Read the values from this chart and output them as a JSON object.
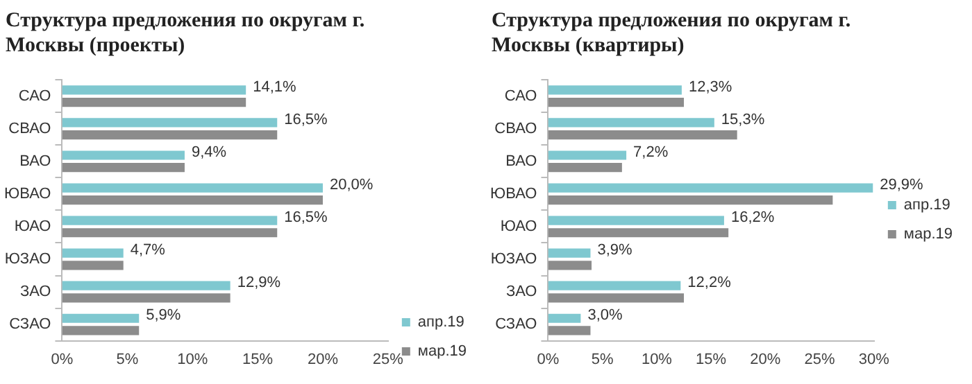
{
  "chart_data": [
    {
      "type": "bar",
      "orientation": "horizontal",
      "title": "Структура предложения по округам г. Москвы (проекты)",
      "categories": [
        "САО",
        "СВАО",
        "ВАО",
        "ЮВАО",
        "ЮАО",
        "ЮЗАО",
        "ЗАО",
        "СЗАО"
      ],
      "series": [
        {
          "name": "апр.19",
          "color": "#7fc8d0",
          "values": [
            14.1,
            16.5,
            9.4,
            20.0,
            16.5,
            4.7,
            12.9,
            5.9
          ],
          "value_labels": [
            "14,1%",
            "16,5%",
            "9,4%",
            "20,0%",
            "16,5%",
            "4,7%",
            "12,9%",
            "5,9%"
          ]
        },
        {
          "name": "мар.19",
          "color": "#8c8c8c",
          "values": [
            14.1,
            16.5,
            9.4,
            20.0,
            16.5,
            4.7,
            12.9,
            5.9
          ]
        }
      ],
      "xlim": [
        0,
        25
      ],
      "xticks": [
        {
          "value": 0,
          "label": "0%"
        },
        {
          "value": 5,
          "label": "5%"
        },
        {
          "value": 10,
          "label": "10%"
        },
        {
          "value": 15,
          "label": "15%"
        },
        {
          "value": 20,
          "label": "20%"
        },
        {
          "value": 25,
          "label": "25%"
        }
      ],
      "grid": false,
      "legend": "bottom right"
    },
    {
      "type": "bar",
      "orientation": "horizontal",
      "title": "Структура предложения по округам г. Москвы (квартиры)",
      "categories": [
        "САО",
        "СВАО",
        "ВАО",
        "ЮВАО",
        "ЮАО",
        "ЮЗАО",
        "ЗАО",
        "СЗАО"
      ],
      "series": [
        {
          "name": "апр.19",
          "color": "#7fc8d0",
          "values": [
            12.3,
            15.3,
            7.2,
            29.9,
            16.2,
            3.9,
            12.2,
            3.0
          ],
          "value_labels": [
            "12,3%",
            "15,3%",
            "7,2%",
            "29,9%",
            "16,2%",
            "3,9%",
            "12,2%",
            "3,0%"
          ]
        },
        {
          "name": "мар.19",
          "color": "#8c8c8c",
          "values": [
            12.5,
            17.4,
            6.8,
            26.2,
            16.6,
            4.0,
            12.5,
            3.9
          ]
        }
      ],
      "xlim": [
        0,
        30
      ],
      "xticks": [
        {
          "value": 0,
          "label": "0%"
        },
        {
          "value": 5,
          "label": "5%"
        },
        {
          "value": 10,
          "label": "10%"
        },
        {
          "value": 15,
          "label": "15%"
        },
        {
          "value": 20,
          "label": "20%"
        },
        {
          "value": 25,
          "label": "25%"
        },
        {
          "value": 30,
          "label": "30%"
        }
      ],
      "grid": false,
      "legend": "right"
    }
  ]
}
